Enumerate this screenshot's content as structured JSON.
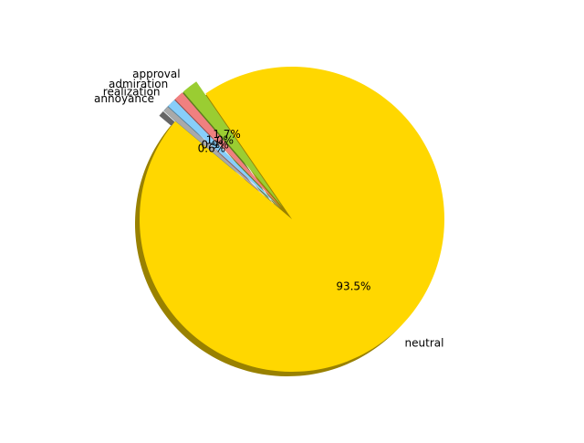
{
  "chart_data": {
    "type": "pie",
    "title": "",
    "start_angle_deg": 140,
    "direction": "counterclockwise",
    "shadow": true,
    "autopct_format": "{v}%",
    "slices": [
      {
        "label": "neutral",
        "value": 93.5,
        "pct_label": "93.5",
        "color": "#ffd700",
        "explode": 0.0
      },
      {
        "label": "approval",
        "value": 1.7,
        "pct_label": "1.7",
        "color": "#9acd32",
        "explode": 0.1
      },
      {
        "label": "admiration",
        "value": 1.0,
        "pct_label": "1.0",
        "color": "#f08080",
        "explode": 0.1
      },
      {
        "label": "realization",
        "value": 0.9,
        "pct_label": "0.9",
        "color": "#87cefa",
        "explode": 0.1
      },
      {
        "label": "annoyance",
        "value": 0.6,
        "pct_label": "0.6",
        "color": "#a9a9a9",
        "explode": 0.1
      }
    ]
  }
}
